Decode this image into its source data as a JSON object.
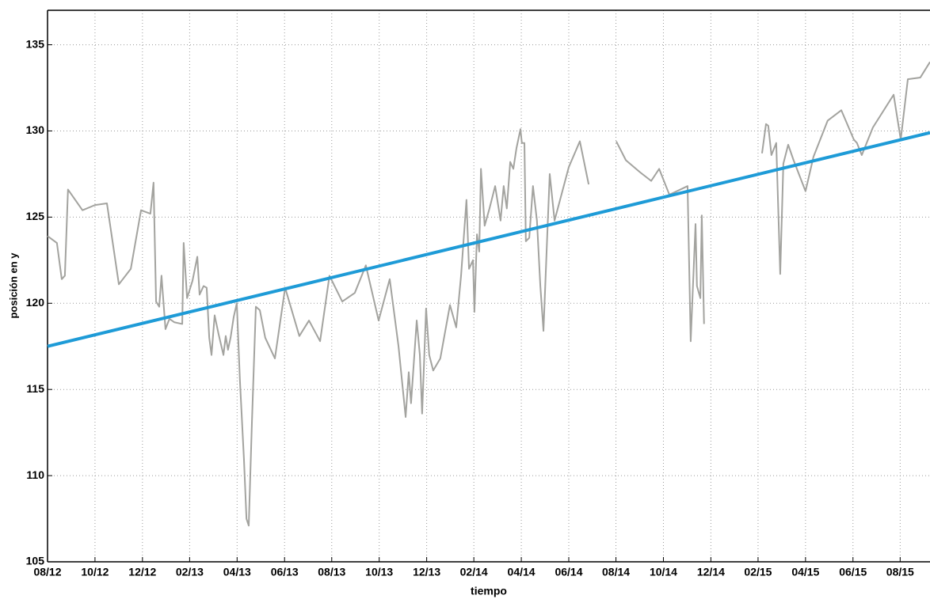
{
  "chart_data": {
    "type": "line",
    "x_label": "tiempo",
    "y_label": "posición en y",
    "xlim": [
      2012.583,
      2015.688
    ],
    "ylim": [
      105,
      137
    ],
    "yticks": [
      105,
      110,
      115,
      120,
      125,
      130,
      135
    ],
    "xticks": [
      {
        "value": 2012.583,
        "label": "08/12"
      },
      {
        "value": 2012.75,
        "label": "10/12"
      },
      {
        "value": 2012.917,
        "label": "12/12"
      },
      {
        "value": 2013.083,
        "label": "02/13"
      },
      {
        "value": 2013.25,
        "label": "04/13"
      },
      {
        "value": 2013.417,
        "label": "06/13"
      },
      {
        "value": 2013.583,
        "label": "08/13"
      },
      {
        "value": 2013.75,
        "label": "10/13"
      },
      {
        "value": 2013.917,
        "label": "12/13"
      },
      {
        "value": 2014.083,
        "label": "02/14"
      },
      {
        "value": 2014.25,
        "label": "04/14"
      },
      {
        "value": 2014.417,
        "label": "06/14"
      },
      {
        "value": 2014.583,
        "label": "08/14"
      },
      {
        "value": 2014.75,
        "label": "10/14"
      },
      {
        "value": 2014.917,
        "label": "12/14"
      },
      {
        "value": 2015.083,
        "label": "02/15"
      },
      {
        "value": 2015.25,
        "label": "04/15"
      },
      {
        "value": 2015.417,
        "label": "06/15"
      },
      {
        "value": 2015.583,
        "label": "08/15"
      }
    ],
    "grid": true,
    "series": [
      {
        "color": "#a3a39f",
        "x": [
          2012.583,
          2012.616,
          2012.633,
          2012.644,
          2012.655,
          2012.706,
          2012.75,
          2012.792,
          2012.834,
          2012.876,
          2012.912,
          2012.945,
          2012.956,
          2012.965,
          2012.976,
          2012.984,
          2012.998,
          2013.012,
          2013.029,
          2013.057,
          2013.062,
          2013.074,
          2013.093,
          2013.11,
          2013.118,
          2013.132,
          2013.143,
          2013.152,
          2013.16,
          2013.171,
          2013.185,
          2013.202,
          2013.21,
          2013.218,
          2013.227,
          2013.238,
          2013.249,
          2013.26,
          2013.274,
          2013.283,
          2013.291,
          2013.302,
          2013.316,
          2013.33,
          2013.349,
          2013.383,
          2013.419,
          2013.469,
          2013.503,
          2013.542,
          2013.575,
          2013.62,
          2013.664,
          2013.703,
          2013.748,
          2013.787,
          2013.818,
          2013.843,
          2013.854,
          2013.862,
          2013.882,
          2013.893,
          2013.901,
          2013.915,
          2013.926,
          2013.94,
          2013.965,
          2013.999,
          2014.021,
          2014.038,
          2014.057,
          2014.066,
          2014.08,
          2014.085,
          2014.094,
          2014.102,
          2014.108,
          2014.121,
          2014.138,
          2014.158,
          2014.177,
          2014.188,
          2014.199,
          2014.211,
          2014.222,
          2014.233,
          2014.247,
          2014.252,
          2014.261,
          2014.266,
          2014.278,
          2014.291,
          2014.305,
          2014.317,
          2014.328,
          2014.339,
          2014.35,
          2014.367,
          2014.417,
          2014.456,
          2014.487,
          2014.55,
          2014.584,
          2014.618,
          2014.668,
          2014.707,
          2014.735,
          2014.771,
          2014.835,
          2014.846,
          2014.863,
          2014.868,
          2014.88,
          2014.885,
          2014.893,
          2015.0,
          2015.097,
          2015.111,
          2015.119,
          2015.13,
          2015.147,
          2015.161,
          2015.172,
          2015.189,
          2015.208,
          2015.25,
          2015.278,
          2015.328,
          2015.376,
          2015.42,
          2015.431,
          2015.448,
          2015.487,
          2015.56,
          2015.585,
          2015.61,
          2015.654,
          2015.688
        ],
        "values": [
          123.9,
          123.5,
          121.4,
          121.6,
          126.6,
          125.4,
          125.7,
          125.8,
          121.1,
          122.0,
          125.4,
          125.2,
          127.0,
          120.1,
          119.8,
          121.6,
          118.5,
          119.1,
          118.9,
          118.8,
          123.5,
          120.3,
          121.3,
          122.7,
          120.5,
          121.0,
          120.9,
          118.0,
          117.0,
          119.3,
          118.2,
          117.0,
          118.1,
          117.3,
          118.0,
          119.2,
          120.0,
          115.5,
          111.0,
          107.5,
          107.1,
          113.0,
          119.8,
          119.6,
          118.0,
          116.8,
          120.9,
          118.1,
          119.0,
          117.8,
          121.6,
          120.1,
          120.6,
          122.2,
          119.0,
          121.4,
          117.5,
          113.4,
          116.0,
          114.2,
          119.0,
          117.0,
          113.6,
          119.7,
          117.0,
          116.1,
          116.8,
          119.9,
          118.6,
          121.6,
          126.0,
          122.0,
          122.5,
          119.5,
          124.0,
          123.0,
          127.8,
          124.5,
          125.5,
          126.8,
          124.8,
          126.8,
          125.5,
          128.2,
          127.8,
          129.0,
          130.1,
          129.3,
          129.3,
          123.6,
          123.8,
          126.8,
          124.8,
          121.0,
          118.4,
          123.0,
          127.5,
          124.8,
          127.9,
          129.4,
          126.9,
          null,
          129.4,
          128.3,
          127.6,
          127.1,
          127.8,
          126.3,
          126.8,
          117.8,
          124.6,
          121.0,
          120.3,
          125.1,
          118.8,
          null,
          128.7,
          130.4,
          130.3,
          128.6,
          129.3,
          121.7,
          128.1,
          129.2,
          128.3,
          126.5,
          128.5,
          130.6,
          131.2,
          129.5,
          129.3,
          128.6,
          130.2,
          132.1,
          129.5,
          133.0,
          133.1,
          134.0
        ]
      },
      {
        "color": "#1e9bd7",
        "x": [
          2012.583,
          2015.688
        ],
        "values": [
          117.5,
          129.9
        ]
      }
    ]
  }
}
